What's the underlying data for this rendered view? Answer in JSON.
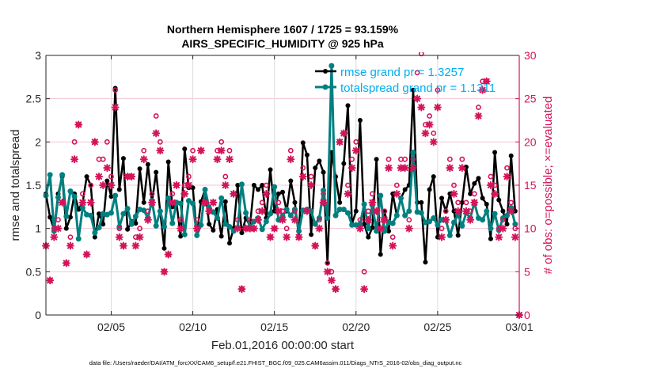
{
  "chart_data": {
    "type": "line",
    "title_lines": [
      "Northern Hemisphere 1607 / 1725 = 93.159%",
      "AIRS_SPECIFIC_HUMIDITY @ 925 hPa"
    ],
    "xlabel": "Feb.01,2016 00:00:00 start",
    "ylabel_left": "rmse and totalspread",
    "ylabel_right": "# of obs: o=possible; ×=evaluated",
    "footer": "data file: /Users/raeder/DAI/ATM_forcXX/CAM6_setup/f.e21.FHIST_BGC.f09_025.CAM6assim.011/Diags_NTrS_2016-02/obs_diag_output.nc",
    "xlim": [
      "02/01 00",
      "03/01 00"
    ],
    "ylim_left": [
      0,
      3
    ],
    "ylim_right": [
      0,
      30
    ],
    "xticks": [
      "02/05",
      "02/10",
      "02/15",
      "02/20",
      "02/25",
      "03/01"
    ],
    "yticks_left": [
      "0",
      "0.5",
      "1",
      "1.5",
      "2",
      "2.5",
      "3"
    ],
    "yticks_right": [
      "0",
      "5",
      "10",
      "15",
      "20",
      "25",
      "30"
    ],
    "grid": true,
    "legend_placement": "top-right",
    "legend": [
      "rmse grand pr = 1.3257",
      "totalspread grand pr = 1.1311"
    ],
    "colors": {
      "rmse": "#000000",
      "totalspread": "#008080",
      "obs": "#d4145a",
      "legend_text": "#00aeef"
    },
    "x": [
      "02/01 00",
      "02/01 06",
      "02/01 12",
      "02/01 18",
      "02/02 00",
      "02/02 06",
      "02/02 12",
      "02/02 18",
      "02/03 00",
      "02/03 06",
      "02/03 12",
      "02/03 18",
      "02/04 00",
      "02/04 06",
      "02/04 12",
      "02/04 18",
      "02/05 00",
      "02/05 06",
      "02/05 12",
      "02/05 18",
      "02/06 00",
      "02/06 06",
      "02/06 12",
      "02/06 18",
      "02/07 00",
      "02/07 06",
      "02/07 12",
      "02/07 18",
      "02/08 00",
      "02/08 06",
      "02/08 12",
      "02/08 18",
      "02/09 00",
      "02/09 06",
      "02/09 12",
      "02/09 18",
      "02/10 00",
      "02/10 06",
      "02/10 12",
      "02/10 18",
      "02/11 00",
      "02/11 06",
      "02/11 12",
      "02/11 18",
      "02/12 00",
      "02/12 06",
      "02/12 12",
      "02/12 18",
      "02/13 00",
      "02/13 06",
      "02/13 12",
      "02/13 18",
      "02/14 00",
      "02/14 06",
      "02/14 12",
      "02/14 18",
      "02/15 00",
      "02/15 06",
      "02/15 12",
      "02/15 18",
      "02/16 00",
      "02/16 06",
      "02/16 12",
      "02/16 18",
      "02/17 00",
      "02/17 06",
      "02/17 12",
      "02/17 18",
      "02/18 00",
      "02/18 06",
      "02/18 12",
      "02/18 18",
      "02/19 00",
      "02/19 06",
      "02/19 12",
      "02/19 18",
      "02/20 00",
      "02/20 06",
      "02/20 12",
      "02/20 18",
      "02/21 00",
      "02/21 06",
      "02/21 12",
      "02/21 18",
      "02/22 00",
      "02/22 06",
      "02/22 12",
      "02/22 18",
      "02/23 00",
      "02/23 06",
      "02/23 12",
      "02/23 18",
      "02/24 00",
      "02/24 06",
      "02/24 12",
      "02/24 18",
      "02/25 00",
      "02/25 06",
      "02/25 12",
      "02/25 18",
      "02/26 00",
      "02/26 06",
      "02/26 12",
      "02/26 18",
      "02/27 00",
      "02/27 06",
      "02/27 12",
      "02/27 18",
      "02/28 00",
      "02/28 06",
      "02/28 12",
      "02/28 18",
      "02/29 00",
      "02/29 06",
      "02/29 12",
      "02/29 18",
      "03/01 00"
    ],
    "series": [
      {
        "name": "rmse",
        "axis": "left",
        "values": [
          1.4,
          1.13,
          0.99,
          1.4,
          1.6,
          1.0,
          1.13,
          1.4,
          1.22,
          1.3,
          1.6,
          1.5,
          0.9,
          1.17,
          1.05,
          1.55,
          1.37,
          2.62,
          1.45,
          1.81,
          0.99,
          1.08,
          1.06,
          1.69,
          1.3,
          1.74,
          1.3,
          1.65,
          1.2,
          0.77,
          1.77,
          1.25,
          1.3,
          0.91,
          1.92,
          1.47,
          1.47,
          0.92,
          1.31,
          1.45,
          1.05,
          0.98,
          1.22,
          0.91,
          1.31,
          0.83,
          1.0,
          1.5,
          0.95,
          1.12,
          1.03,
          1.5,
          1.45,
          1.5,
          1.12,
          1.68,
          1.2,
          1.4,
          1.42,
          1.2,
          1.55,
          1.3,
          0.9,
          1.99,
          1.85,
          0.93,
          1.7,
          1.78,
          1.65,
          0.6,
          1.88,
          1.6,
          1.3,
          1.75,
          2.42,
          1.05,
          1.2,
          2.25,
          1.05,
          0.9,
          1.01,
          1.8,
          0.7,
          1.2,
          0.97,
          1.4,
          1.15,
          1.35,
          1.45,
          1.5,
          2.6,
          1.3,
          1.3,
          0.61,
          1.45,
          1.6,
          0.9,
          1.35,
          1.2,
          1.4,
          1.2,
          0.92,
          1.3,
          1.71,
          1.4,
          1.52,
          1.58,
          1.35,
          1.28,
          0.88,
          1.88,
          1.33,
          1.2,
          1.05,
          1.84,
          1.2,
          null
        ]
      },
      {
        "name": "totalspread",
        "axis": "left",
        "values": [
          1.38,
          1.62,
          0.97,
          1.36,
          1.62,
          1.14,
          1.43,
          1.37,
          0.88,
          1.24,
          1.16,
          1.15,
          0.95,
          1.01,
          1.17,
          1.16,
          1.18,
          1.38,
          1.02,
          1.17,
          1.23,
          1.05,
          1.14,
          1.22,
          1.21,
          1.12,
          1.32,
          1.03,
          1.2,
          1.02,
          1.35,
          1.06,
          1.3,
          1.29,
          0.93,
          1.32,
          1.29,
          0.92,
          1.04,
          1.45,
          1.24,
          1.19,
          1.12,
          1.35,
          1.05,
          1.02,
          0.97,
          1.01,
          1.51,
          1.18,
          1.02,
          1.08,
          1.12,
          0.99,
          1.08,
          1.17,
          1.48,
          1.1,
          1.14,
          1.22,
          1.15,
          1.22,
          0.97,
          1.21,
          1.22,
          1.2,
          1.05,
          1.12,
          1.44,
          1.12,
          2.88,
          1.15,
          1.22,
          1.22,
          1.18,
          1.04,
          1.04,
          1.05,
          1.28,
          1.0,
          1.27,
          0.97,
          1.38,
          0.97,
          1.07,
          1.06,
          1.15,
          1.35,
          1.15,
          1.2,
          1.88,
          1.19,
          1.18,
          1.07,
          1.08,
          1.12,
          1.04,
          1.1,
          1.1,
          0.92,
          1.07,
          1.16,
          1.03,
          1.18,
          1.12,
          1.3,
          1.12,
          1.1,
          1.2,
          1.0,
          1.17,
          0.98,
          1.12,
          1.15,
          1.24,
          1.05,
          null
        ]
      },
      {
        "name": "possible",
        "axis": "right",
        "marker": "circle",
        "values": [
          8,
          4,
          10,
          11,
          13,
          6,
          9,
          20,
          22,
          14,
          7,
          15,
          20,
          18,
          18,
          20,
          16,
          26,
          10,
          8,
          16,
          16,
          9,
          10,
          19,
          12,
          14,
          23,
          20,
          5,
          7,
          14,
          15,
          11,
          15,
          16,
          19,
          11,
          19,
          13,
          12,
          13,
          19,
          20,
          16,
          19,
          14,
          11,
          3,
          10,
          11,
          10,
          12,
          13,
          15,
          9,
          10,
          13,
          12,
          10,
          19,
          12,
          9,
          17,
          12,
          16,
          8,
          11,
          14,
          6,
          5,
          3,
          20,
          21,
          15,
          18,
          20,
          11,
          5,
          12,
          14,
          12,
          11,
          12,
          18,
          9,
          15,
          18,
          18,
          11,
          18,
          28,
          31,
          22,
          23,
          21,
          26,
          10,
          12,
          18,
          15,
          13,
          18,
          13,
          12,
          14,
          24,
          27,
          27,
          16,
          15,
          10,
          11,
          17,
          13,
          10,
          0
        ]
      },
      {
        "name": "evaluated",
        "axis": "right",
        "marker": "asterisk",
        "values": [
          8,
          4,
          9,
          10,
          13,
          6,
          8,
          18,
          22,
          13,
          7,
          13,
          20,
          16,
          15,
          17,
          15,
          24,
          9,
          8,
          16,
          16,
          8,
          9,
          18,
          11,
          13,
          21,
          19,
          5,
          7,
          13,
          15,
          10,
          14,
          15,
          18,
          10,
          19,
          13,
          12,
          13,
          18,
          19,
          15,
          18,
          14,
          10,
          3,
          10,
          10,
          10,
          11,
          12,
          14,
          9,
          10,
          12,
          11,
          9,
          18,
          11,
          9,
          16,
          12,
          15,
          8,
          10,
          13,
          5,
          4,
          3,
          20,
          21,
          14,
          17,
          19,
          10,
          3,
          11,
          13,
          12,
          10,
          11,
          17,
          8,
          14,
          17,
          17,
          10,
          17,
          25,
          24,
          21,
          22,
          20,
          24,
          9,
          11,
          17,
          14,
          12,
          17,
          12,
          11,
          13,
          23,
          26,
          27,
          15,
          14,
          9,
          10,
          16,
          12,
          9,
          0
        ]
      }
    ]
  }
}
